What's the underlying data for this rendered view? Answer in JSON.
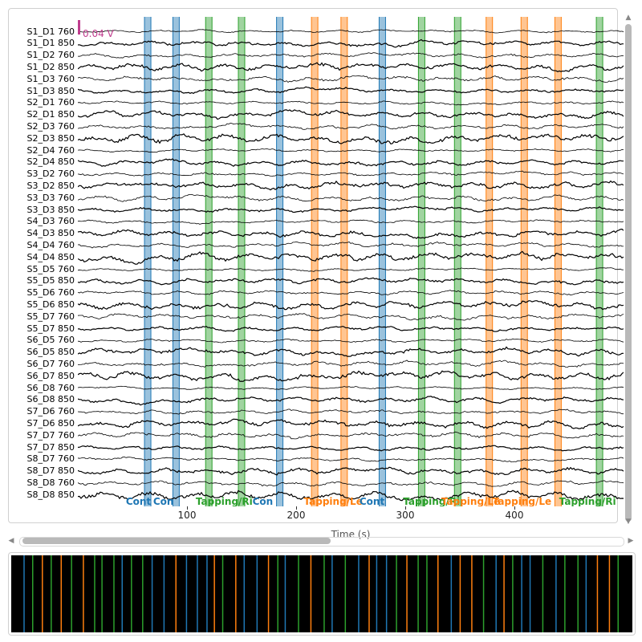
{
  "channels": [
    "S1_D1 760",
    "S1_D1 850",
    "S1_D2 760",
    "S1_D2 850",
    "S1_D3 760",
    "S1_D3 850",
    "S2_D1 760",
    "S2_D1 850",
    "S2_D3 760",
    "S2_D3 850",
    "S2_D4 760",
    "S2_D4 850",
    "S3_D2 760",
    "S3_D2 850",
    "S3_D3 760",
    "S3_D3 850",
    "S4_D3 760",
    "S4_D3 850",
    "S4_D4 760",
    "S4_D4 850",
    "S5_D5 760",
    "S5_D5 850",
    "S5_D6 760",
    "S5_D6 850",
    "S5_D7 760",
    "S5_D7 850",
    "S6_D5 760",
    "S6_D5 850",
    "S6_D7 760",
    "S6_D7 850",
    "S6_D8 760",
    "S6_D8 850",
    "S7_D6 760",
    "S7_D6 850",
    "S7_D7 760",
    "S7_D7 850",
    "S8_D7 760",
    "S8_D7 850",
    "S8_D8 760",
    "S8_D8 850"
  ],
  "scale_label": "0.04 V",
  "xaxis": {
    "label": "Time (s)",
    "ticks": [
      "100",
      "200",
      "300",
      "400"
    ],
    "tick_values": [
      100,
      200,
      300,
      400
    ],
    "range": [
      0,
      500
    ]
  },
  "annotation_colors": {
    "Control": "#1f77b4",
    "Tapping/Left": "#ff7f0e",
    "Tapping/Right": "#2ca02c"
  },
  "annotations": [
    {
      "t": 64,
      "type": "Control"
    },
    {
      "t": 90,
      "type": "Control"
    },
    {
      "t": 120,
      "type": "Tapping/Right"
    },
    {
      "t": 150,
      "type": "Tapping/Right"
    },
    {
      "t": 185,
      "type": "Control"
    },
    {
      "t": 217,
      "type": "Tapping/Left"
    },
    {
      "t": 244,
      "type": "Tapping/Left"
    },
    {
      "t": 279,
      "type": "Control"
    },
    {
      "t": 315,
      "type": "Tapping/Right"
    },
    {
      "t": 348,
      "type": "Tapping/Right"
    },
    {
      "t": 377,
      "type": "Tapping/Left"
    },
    {
      "t": 409,
      "type": "Tapping/Left"
    },
    {
      "t": 440,
      "type": "Tapping/Left"
    },
    {
      "t": 478,
      "type": "Tapping/Right"
    }
  ],
  "annotation_text": [
    {
      "t": 44,
      "text": "Cont",
      "type": "Control"
    },
    {
      "t": 69,
      "text": "Con",
      "type": "Control"
    },
    {
      "t": 108,
      "text": "Tapping/Ri",
      "type": "Tapping/Right"
    },
    {
      "t": 160,
      "text": "Con",
      "type": "Control"
    },
    {
      "t": 207,
      "text": "Tapping/Le",
      "type": "Tapping/Left"
    },
    {
      "t": 258,
      "text": "Cont",
      "type": "Control"
    },
    {
      "t": 298,
      "text": "Tapping/Ri",
      "type": "Tapping/Right"
    },
    {
      "t": 333,
      "text": "Tapping/Le",
      "type": "Tapping/Left"
    },
    {
      "t": 380,
      "text": "Tapping/Le",
      "type": "Tapping/Left"
    },
    {
      "t": 441,
      "text": "Tapping/Ri",
      "type": "Tapping/Right"
    }
  ],
  "overview_annotation_types": [
    "Control",
    "Tapping/Left",
    "Tapping/Right"
  ]
}
